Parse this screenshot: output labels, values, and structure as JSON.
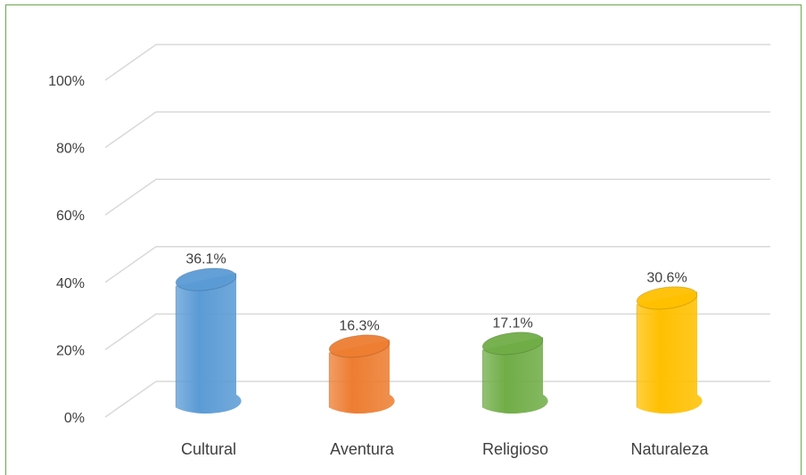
{
  "chart_data": {
    "type": "bar",
    "categories": [
      "Cultural",
      "Aventura",
      "Religioso",
      "Naturaleza"
    ],
    "values": [
      36.1,
      16.3,
      17.1,
      30.6
    ],
    "data_labels": [
      "36.1%",
      "16.3%",
      "17.1%",
      "30.6%"
    ],
    "colors": [
      "#5b9bd5",
      "#ed7d31",
      "#70ad47",
      "#ffc000"
    ],
    "yticks": [
      "0%",
      "20%",
      "40%",
      "60%",
      "80%",
      "100%"
    ],
    "ylim": [
      0,
      100
    ],
    "grid": true,
    "style": "3d-cylinder"
  }
}
